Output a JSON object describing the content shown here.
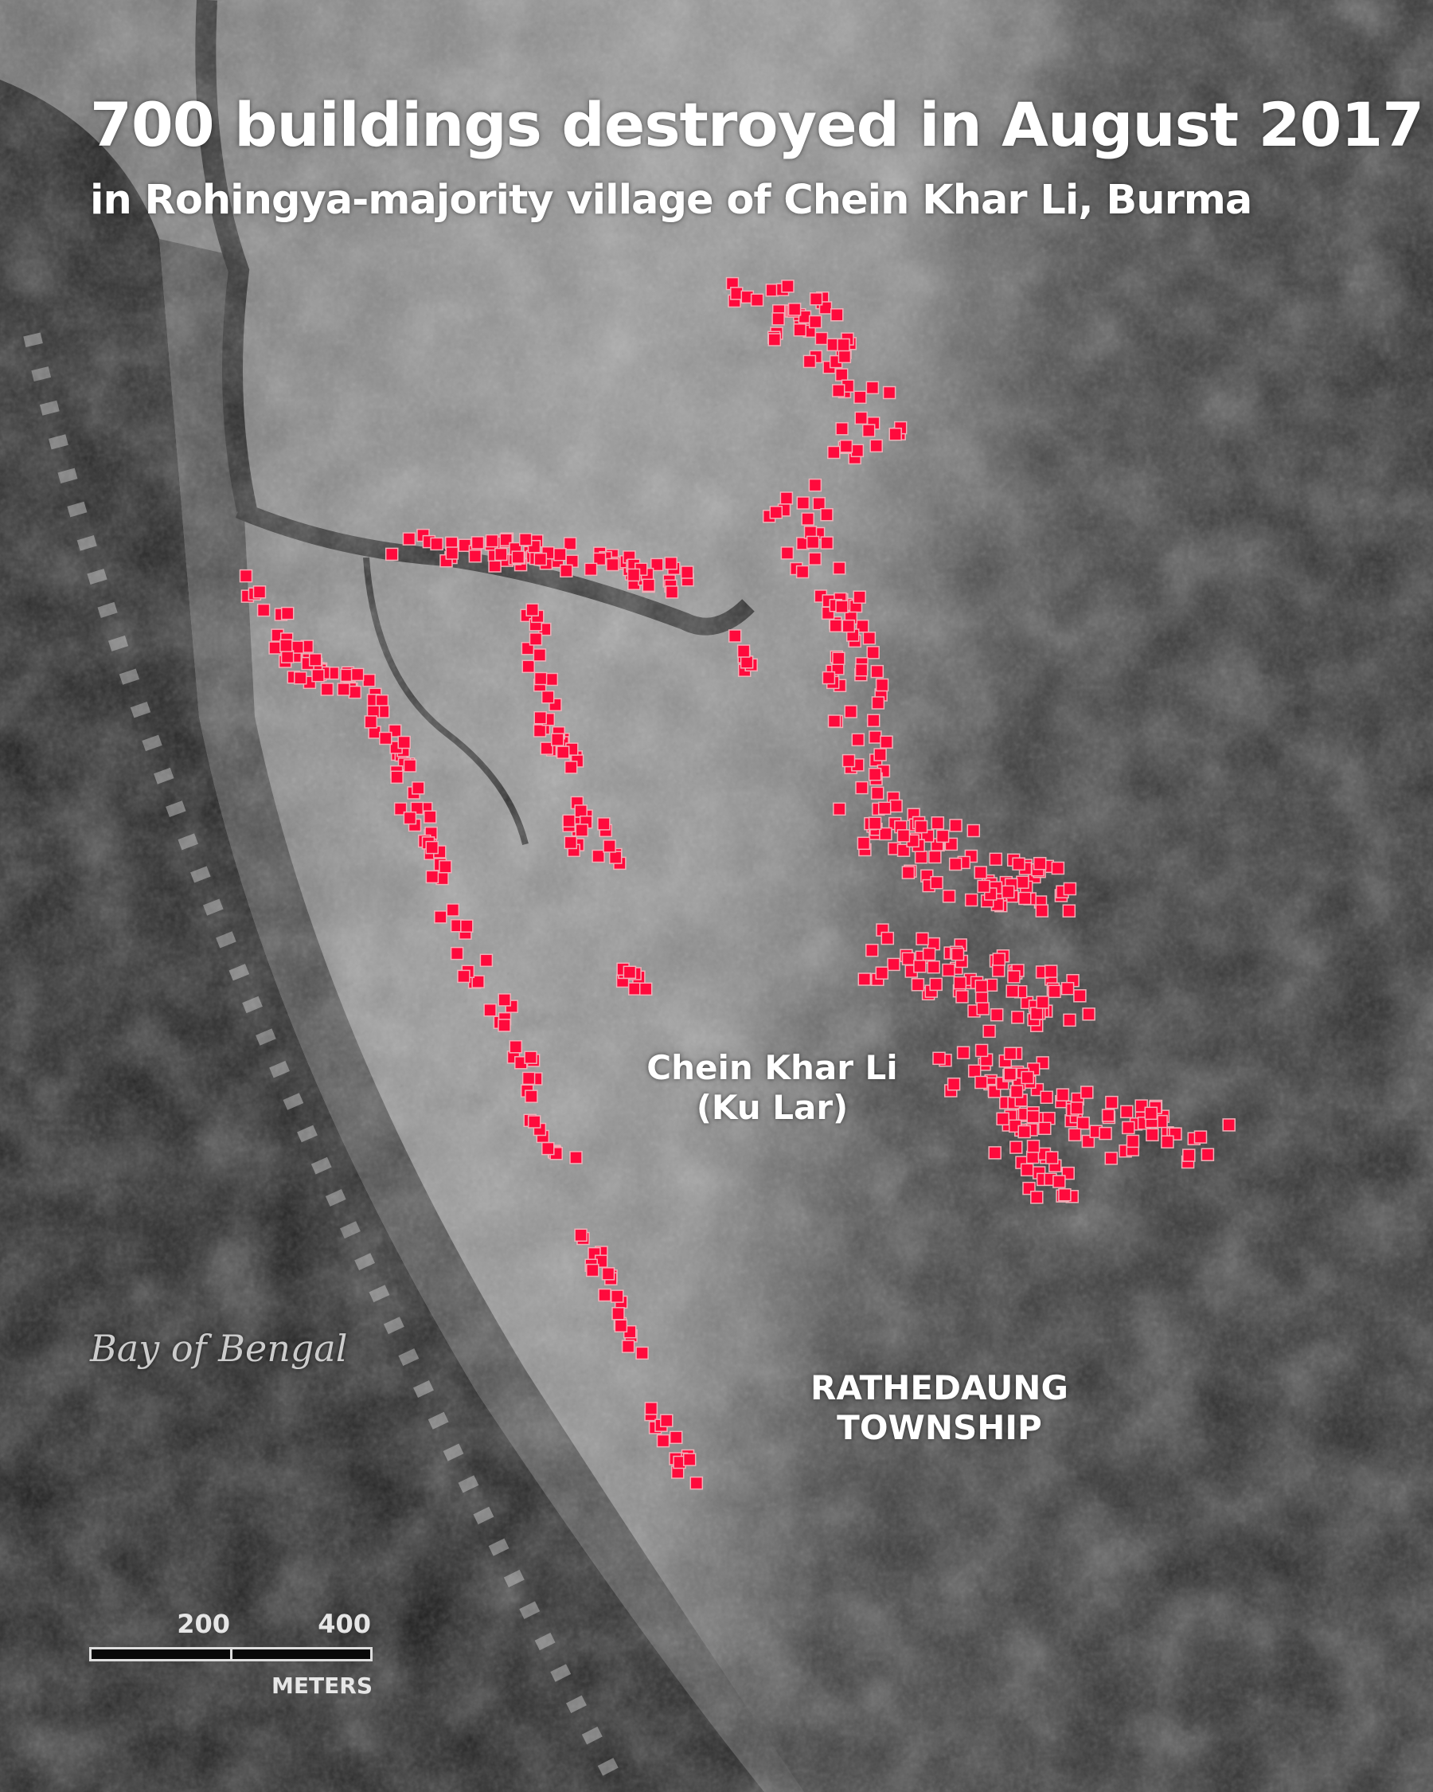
{
  "header": {
    "title": "700 buildings destroyed in August 2017",
    "subtitle": "in Rohingya-majority village of Chein Khar Li, Burma"
  },
  "labels": {
    "village_name": "Chein Khar Li",
    "village_alt_name": "(Ku Lar)",
    "township_line1": "RATHEDAUNG",
    "township_line2": "TOWNSHIP",
    "water_body": "Bay of Bengal"
  },
  "scale_bar": {
    "ticks": [
      "200",
      "400"
    ],
    "unit": "METERS"
  },
  "legend_colors": {
    "destroyed_building": "#ff0a3c"
  },
  "basemap": "grayscale satellite imagery"
}
